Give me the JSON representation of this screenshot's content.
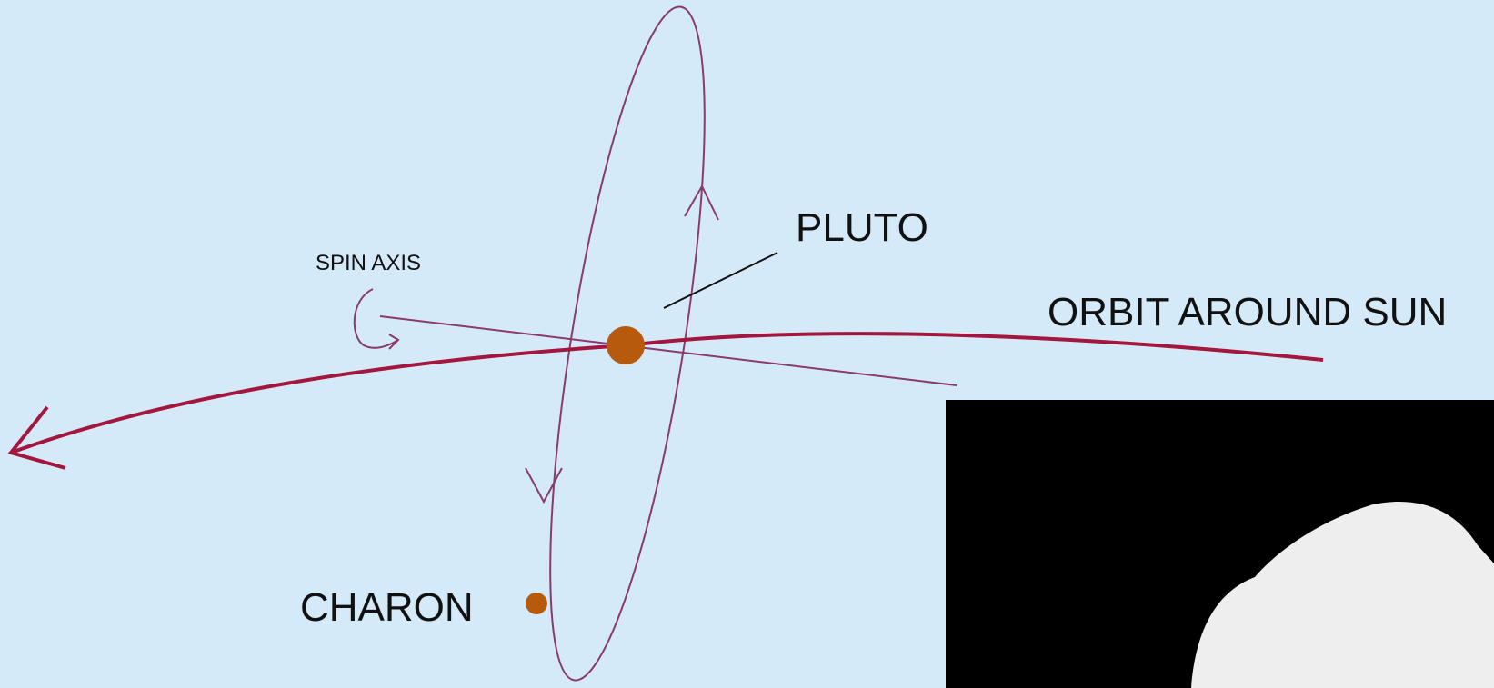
{
  "labels": {
    "pluto": "PLUTO",
    "spin_axis": "SPIN AXIS",
    "orbit": "ORBIT AROUND SUN",
    "charon": "CHARON"
  }
}
